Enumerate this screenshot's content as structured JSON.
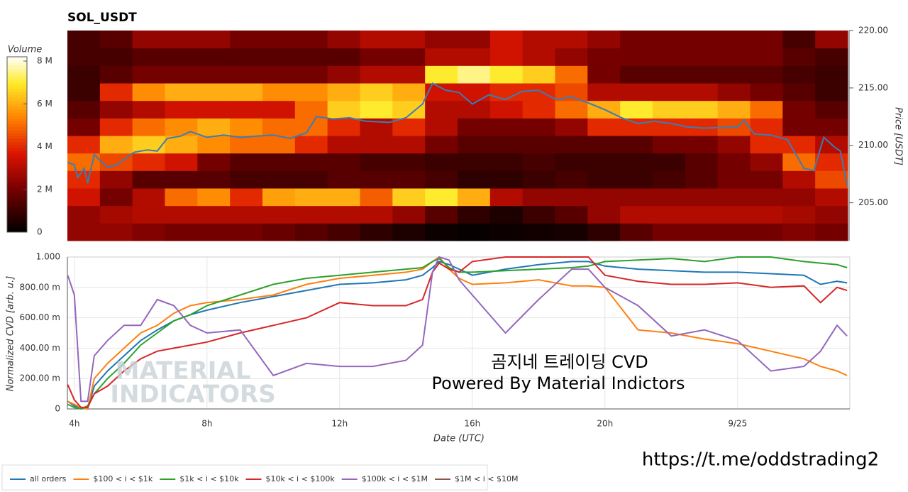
{
  "chart_data": [
    {
      "type": "heatmap",
      "title": "SOL_USDT",
      "y_label": "Price [USDT]",
      "colorbar_title": "Volume",
      "xlim": [
        3.79,
        27.32
      ],
      "ylim": [
        201.7,
        220
      ],
      "yticks": [
        {
          "value": 205,
          "label": "205.00"
        },
        {
          "value": 210,
          "label": "210.00"
        },
        {
          "value": 215,
          "label": "215.00"
        },
        {
          "value": 220,
          "label": "220.00"
        }
      ],
      "clim": [
        0,
        8.2
      ],
      "cticks": [
        0,
        {
          "value": 2,
          "label": "2 M"
        },
        {
          "value": 4,
          "label": "4 M"
        },
        {
          "value": 6,
          "label": "6 M"
        },
        {
          "value": 8,
          "label": "8 M"
        }
      ],
      "z": [
        [
          2.5,
          2.5,
          2.2,
          2,
          2,
          2,
          1.8,
          1.5,
          1.2,
          0.8,
          0.5,
          0.2,
          0.1,
          0.2,
          0.3,
          0.4,
          0.8,
          1.5,
          2,
          2,
          2,
          2,
          2.2,
          2
        ],
        [
          2.5,
          2.8,
          3,
          3,
          3,
          3,
          3,
          3,
          3,
          3,
          2.5,
          1.5,
          0.8,
          0.5,
          1,
          1.5,
          2.5,
          3,
          3,
          3,
          3,
          3,
          2.8,
          2.5
        ],
        [
          3.5,
          2,
          3,
          5,
          5.5,
          4,
          5.8,
          6,
          6,
          4.8,
          6.5,
          7,
          6,
          3,
          2.5,
          2.5,
          2.5,
          2.5,
          2.5,
          2.5,
          2.5,
          2.5,
          2.5,
          3
        ],
        [
          4,
          2.5,
          1.5,
          1.5,
          1.5,
          1.2,
          1.2,
          1.2,
          1.5,
          1.5,
          1.5,
          1.2,
          0.8,
          0.8,
          1,
          1.2,
          1,
          1,
          1.2,
          1.5,
          2,
          2,
          3,
          4.5
        ],
        [
          5,
          4.5,
          4,
          3.5,
          2,
          1.5,
          1.5,
          1.5,
          1.5,
          1.2,
          1.2,
          1,
          1,
          1,
          1.2,
          1,
          1,
          1,
          1,
          1.5,
          2,
          2.5,
          5,
          4
        ],
        [
          4,
          6,
          6.5,
          6,
          5.5,
          5,
          5,
          4,
          3,
          3,
          3,
          2,
          1.5,
          1.5,
          1.5,
          1.5,
          1.5,
          1.5,
          2,
          2,
          2.5,
          4,
          4,
          3
        ],
        [
          2,
          4,
          5,
          5.5,
          6,
          5.5,
          5,
          5,
          4,
          3,
          4,
          3,
          2,
          2,
          2,
          2.5,
          4,
          4,
          4,
          4,
          4.5,
          4,
          2,
          2
        ],
        [
          1.5,
          2.5,
          3,
          3.5,
          3.5,
          3.5,
          3.5,
          5,
          6.5,
          7,
          6.5,
          3,
          3,
          3.5,
          4,
          5,
          6,
          7,
          6.5,
          6.5,
          6,
          5,
          2,
          1.5
        ],
        [
          1,
          4,
          5.5,
          6,
          6,
          6,
          5.5,
          5.5,
          6,
          6.5,
          6,
          3.5,
          3.5,
          4,
          4,
          4.5,
          3,
          3,
          3,
          3,
          2.5,
          2,
          1.5,
          1
        ],
        [
          1,
          1.5,
          2,
          2,
          2,
          2,
          2,
          2,
          2.5,
          3,
          3,
          7,
          7.5,
          7,
          6.5,
          5,
          2,
          1.5,
          1.5,
          1.5,
          1.5,
          1.5,
          1.2,
          1
        ],
        [
          1.2,
          1.2,
          1.5,
          1.5,
          1.5,
          1.5,
          1.5,
          1.5,
          1.5,
          2,
          2,
          3,
          3,
          3.5,
          3,
          2.5,
          2,
          2,
          2,
          2,
          2,
          2,
          1.5,
          1.2
        ],
        [
          1.2,
          1.5,
          2.5,
          2.5,
          2.5,
          2,
          2,
          2,
          2.5,
          3,
          3,
          2.5,
          2.5,
          3.5,
          3,
          3,
          2.5,
          2,
          2,
          2,
          2,
          2,
          1.2,
          2.5
        ]
      ],
      "price": {
        "color": "#3a7db8",
        "x": [
          3.8,
          4.0,
          4.1,
          4.3,
          4.4,
          4.6,
          4.8,
          5.0,
          5.3,
          5.5,
          5.8,
          6.2,
          6.5,
          6.8,
          7.2,
          7.5,
          8.0,
          8.5,
          9.0,
          9.5,
          10,
          10.5,
          11,
          11.3,
          11.8,
          12.3,
          12.8,
          13.5,
          14.0,
          14.5,
          14.8,
          15.2,
          15.6,
          16.0,
          16.5,
          17.0,
          17.5,
          18.0,
          18.5,
          19.0,
          19.5,
          20.0,
          20.5,
          21.0,
          21.5,
          22.0,
          22.5,
          23,
          24,
          24.2,
          24.5,
          25,
          25.5,
          26,
          26.3,
          26.6,
          26.9,
          27.1,
          27.3
        ],
        "values": [
          208.5,
          208.3,
          207.2,
          208.0,
          206.7,
          209.2,
          208.6,
          208.1,
          208.3,
          208.8,
          209.4,
          209.6,
          209.5,
          210.6,
          210.8,
          211.2,
          210.7,
          210.9,
          210.7,
          210.8,
          210.9,
          210.6,
          211.1,
          212.5,
          212.3,
          212.4,
          212.1,
          212.0,
          212.4,
          213.6,
          215.4,
          214.8,
          214.6,
          213.6,
          214.4,
          214.0,
          214.7,
          214.8,
          214.0,
          214.2,
          213.7,
          213.1,
          212.4,
          211.9,
          212.1,
          211.9,
          211.6,
          211.5,
          211.6,
          212.2,
          211.0,
          210.9,
          210.5,
          208.0,
          207.8,
          210.7,
          209.9,
          209.5,
          206.5
        ]
      }
    },
    {
      "type": "line",
      "x_label": "Date (UTC)",
      "y_label": "Normalized CVD [arb. u.]",
      "grid": true,
      "xlim": [
        3.79,
        27.32
      ],
      "ylim": [
        0,
        1
      ],
      "xticks": [
        {
          "value": 4,
          "label": "4h"
        },
        {
          "value": 8,
          "label": "8h"
        },
        {
          "value": 12,
          "label": "12h"
        },
        {
          "value": 16,
          "label": "16h"
        },
        {
          "value": 20,
          "label": "20h"
        },
        {
          "value": 24,
          "label": "9/25"
        }
      ],
      "yticks": [
        0,
        {
          "value": 0.2,
          "label": "200.00 m"
        },
        {
          "value": 0.4,
          "label": "400.00 m"
        },
        {
          "value": 0.6,
          "label": "600.00 m"
        },
        {
          "value": 0.8,
          "label": "800.00 m"
        },
        {
          "value": 1,
          "label": "1.000"
        }
      ],
      "x": [
        3.8,
        4.0,
        4.2,
        4.4,
        4.6,
        5,
        5.5,
        6,
        6.5,
        7,
        7.5,
        8,
        9,
        10,
        11,
        12,
        13,
        14,
        14.5,
        14.8,
        15,
        15.3,
        15.6,
        16,
        17,
        18,
        19,
        19.5,
        20,
        21,
        22,
        23,
        24,
        25,
        26,
        26.5,
        27,
        27.3
      ],
      "series": [
        {
          "name": "all orders",
          "color": "#1f77b4",
          "values": [
            0.05,
            0.02,
            0.01,
            0,
            0.15,
            0.25,
            0.35,
            0.45,
            0.52,
            0.58,
            0.62,
            0.65,
            0.7,
            0.74,
            0.78,
            0.82,
            0.83,
            0.85,
            0.88,
            0.93,
            0.97,
            0.95,
            0.92,
            0.88,
            0.92,
            0.95,
            0.97,
            0.97,
            0.94,
            0.92,
            0.91,
            0.9,
            0.9,
            0.89,
            0.88,
            0.82,
            0.84,
            0.83
          ]
        },
        {
          "name": "$100 < i < $1k",
          "color": "#ff7f0e",
          "values": [
            0.05,
            0.03,
            0.01,
            0,
            0.2,
            0.3,
            0.4,
            0.5,
            0.55,
            0.63,
            0.68,
            0.7,
            0.72,
            0.75,
            0.82,
            0.86,
            0.88,
            0.9,
            0.92,
            0.97,
            1.0,
            0.92,
            0.86,
            0.82,
            0.83,
            0.85,
            0.81,
            0.81,
            0.8,
            0.52,
            0.5,
            0.46,
            0.43,
            0.38,
            0.33,
            0.28,
            0.25,
            0.22
          ]
        },
        {
          "name": "$1k < i < $10k",
          "color": "#2ca02c",
          "values": [
            0.03,
            0.01,
            0,
            0.02,
            0.1,
            0.2,
            0.3,
            0.42,
            0.5,
            0.58,
            0.62,
            0.68,
            0.75,
            0.82,
            0.86,
            0.88,
            0.9,
            0.92,
            0.93,
            0.97,
            0.99,
            0.93,
            0.9,
            0.9,
            0.91,
            0.92,
            0.93,
            0.94,
            0.97,
            0.98,
            0.99,
            0.97,
            1.0,
            1.0,
            0.97,
            0.96,
            0.95,
            0.93
          ]
        },
        {
          "name": "$10k < i < $100k",
          "color": "#d62728",
          "values": [
            0.16,
            0.06,
            0.01,
            0.01,
            0.1,
            0.15,
            0.25,
            0.33,
            0.38,
            0.4,
            0.42,
            0.44,
            0.5,
            0.55,
            0.6,
            0.7,
            0.68,
            0.68,
            0.72,
            0.9,
            0.96,
            0.92,
            0.9,
            0.97,
            1.0,
            1.0,
            1.0,
            1.0,
            0.88,
            0.84,
            0.82,
            0.82,
            0.83,
            0.8,
            0.81,
            0.7,
            0.8,
            0.78
          ]
        },
        {
          "name": "$100k < i < $1M",
          "color": "#9467bd",
          "values": [
            0.88,
            0.75,
            0.05,
            0.05,
            0.35,
            0.45,
            0.55,
            0.55,
            0.72,
            0.68,
            0.55,
            0.5,
            0.52,
            0.22,
            0.3,
            0.28,
            0.28,
            0.32,
            0.42,
            0.9,
            1.0,
            0.98,
            0.85,
            0.75,
            0.5,
            0.72,
            0.92,
            0.92,
            0.8,
            0.68,
            0.48,
            0.52,
            0.45,
            0.25,
            0.28,
            0.38,
            0.55,
            0.48
          ]
        },
        {
          "name": "$1M < i < $10M",
          "color": "#8c564b",
          "values": [
            null,
            null,
            null,
            null,
            null,
            null,
            null,
            null,
            null,
            null,
            null,
            null,
            null,
            null,
            null,
            null,
            null,
            null,
            null,
            null,
            null,
            null,
            null,
            null,
            null,
            null,
            null,
            null,
            null,
            null,
            null,
            null,
            null,
            null,
            null,
            null,
            null,
            null
          ]
        }
      ],
      "annotations": [
        "MATERIAL",
        "INDICATORS",
        "곰지네 트레이딩 CVD",
        "Powered By Material Indictors",
        "https://t.me/oddstrading2"
      ]
    }
  ]
}
